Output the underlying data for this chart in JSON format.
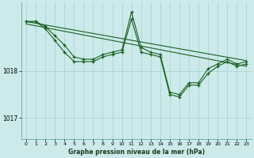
{
  "title": "Graphe pression niveau de la mer (hPa)",
  "bg_color": "#cceaea",
  "grid_color": "#aad4d4",
  "line_color": "#1a6020",
  "xlim": [
    -0.5,
    23.5
  ],
  "ylim": [
    1016.55,
    1019.45
  ],
  "yticks": [
    1017,
    1018
  ],
  "xticks": [
    0,
    1,
    2,
    3,
    4,
    5,
    6,
    7,
    8,
    9,
    10,
    11,
    12,
    13,
    14,
    15,
    16,
    17,
    18,
    19,
    20,
    21,
    22,
    23
  ],
  "series1": [
    1019.05,
    1019.05,
    1018.95,
    1018.75,
    1018.55,
    1018.3,
    1018.25,
    1018.25,
    1018.35,
    1018.4,
    1018.45,
    1019.25,
    1018.5,
    1018.4,
    1018.35,
    1017.55,
    1017.5,
    1017.75,
    1017.75,
    1018.05,
    1018.15,
    1018.25,
    1018.15,
    1018.2
  ],
  "series2": [
    1019.05,
    1019.05,
    1018.9,
    1018.65,
    1018.4,
    1018.2,
    1018.2,
    1018.2,
    1018.3,
    1018.35,
    1018.4,
    1019.1,
    1018.4,
    1018.35,
    1018.3,
    1017.5,
    1017.45,
    1017.7,
    1017.7,
    1017.95,
    1018.1,
    1018.2,
    1018.1,
    1018.15
  ],
  "trend1": [
    1019.05,
    1018.22
  ],
  "trend2": [
    1019.0,
    1018.1
  ]
}
